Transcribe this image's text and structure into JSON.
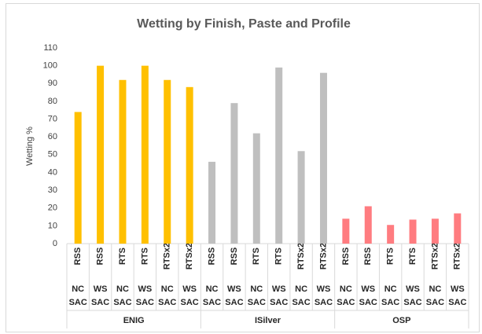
{
  "chart_data": {
    "type": "bar",
    "title": "Wetting by Finish, Paste and Profile",
    "y_label": "Wetting %",
    "ylim": [
      0,
      110
    ],
    "yticks": [
      0,
      10,
      20,
      30,
      40,
      50,
      60,
      70,
      80,
      90,
      100,
      110
    ],
    "grid": false,
    "groups": [
      {
        "name": "ENIG",
        "color": "#ffc000",
        "profiles": [
          "RSS",
          "RSS",
          "RTS",
          "RTS",
          "RTSx2",
          "RTSx2"
        ],
        "pastes": [
          [
            "NC",
            "SAC"
          ],
          [
            "WS",
            "SAC"
          ],
          [
            "NC",
            "SAC"
          ],
          [
            "WS",
            "SAC"
          ],
          [
            "NC",
            "SAC"
          ],
          [
            "WS",
            "SAC"
          ]
        ],
        "values": [
          74,
          100,
          92,
          100,
          92,
          88
        ]
      },
      {
        "name": "ISilver",
        "color": "#bfbfbf",
        "profiles": [
          "RSS",
          "RSS",
          "RTS",
          "RTS",
          "RTSx2",
          "RTSx2"
        ],
        "pastes": [
          [
            "NC",
            "SAC"
          ],
          [
            "WS",
            "SAC"
          ],
          [
            "NC",
            "SAC"
          ],
          [
            "WS",
            "SAC"
          ],
          [
            "NC",
            "SAC"
          ],
          [
            "WS",
            "SAC"
          ]
        ],
        "values": [
          46,
          79,
          62,
          99,
          52,
          96
        ]
      },
      {
        "name": "OSP",
        "color": "#ff7c80",
        "profiles": [
          "RSS",
          "RSS",
          "RTS",
          "RTS",
          "RTSx2",
          "RTSx2"
        ],
        "pastes": [
          [
            "NC",
            "SAC"
          ],
          [
            "WS",
            "SAC"
          ],
          [
            "NC",
            "SAC"
          ],
          [
            "WS",
            "SAC"
          ],
          [
            "NC",
            "SAC"
          ],
          [
            "WS",
            "SAC"
          ]
        ],
        "values": [
          14,
          21,
          10.5,
          13.5,
          14,
          17
        ]
      }
    ]
  }
}
